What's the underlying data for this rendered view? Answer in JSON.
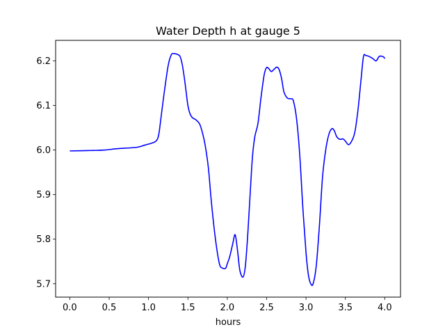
{
  "chart_data": {
    "type": "line",
    "title": "Water Depth h at gauge 5",
    "xlabel": "hours",
    "ylabel": "",
    "xlim": [
      -0.18,
      4.2
    ],
    "ylim": [
      5.67,
      6.246
    ],
    "grid": false,
    "line_color": "#0000ff",
    "x_ticks": [
      0.0,
      0.5,
      1.0,
      1.5,
      2.0,
      2.5,
      3.0,
      3.5,
      4.0
    ],
    "x_tick_labels": [
      "0.0",
      "0.5",
      "1.0",
      "1.5",
      "2.0",
      "2.5",
      "3.0",
      "3.5",
      "4.0"
    ],
    "y_ticks": [
      5.7,
      5.8,
      5.9,
      6.0,
      6.1,
      6.2
    ],
    "y_tick_labels": [
      "5.7",
      "5.8",
      "5.9",
      "6.0",
      "6.1",
      "6.2"
    ],
    "series": [
      {
        "x": [
          0.0,
          0.3,
          0.45,
          0.6,
          0.85,
          0.95,
          1.05,
          1.1,
          1.13,
          1.16,
          1.2,
          1.25,
          1.29,
          1.32,
          1.36,
          1.4,
          1.43,
          1.46,
          1.5,
          1.53,
          1.56,
          1.6,
          1.65,
          1.69,
          1.72,
          1.76,
          1.8,
          1.85,
          1.9,
          1.94,
          1.98,
          2.0,
          2.03,
          2.07,
          2.1,
          2.13,
          2.16,
          2.2,
          2.23,
          2.26,
          2.29,
          2.32,
          2.35,
          2.39,
          2.43,
          2.47,
          2.5,
          2.53,
          2.56,
          2.6,
          2.63,
          2.66,
          2.69,
          2.72,
          2.76,
          2.79,
          2.81,
          2.84,
          2.88,
          2.92,
          2.96,
          3.0,
          3.03,
          3.06,
          3.09,
          3.13,
          3.17,
          3.21,
          3.25,
          3.29,
          3.33,
          3.36,
          3.39,
          3.43,
          3.47,
          3.5,
          3.54,
          3.58,
          3.62,
          3.66,
          3.7,
          3.73,
          3.76,
          3.8,
          3.85,
          3.89,
          3.93,
          3.97,
          3.99,
          4.0
        ],
        "y": [
          5.998,
          5.999,
          6.0,
          6.003,
          6.006,
          6.011,
          6.016,
          6.021,
          6.035,
          6.075,
          6.13,
          6.19,
          6.214,
          6.216,
          6.215,
          6.21,
          6.19,
          6.155,
          6.1,
          6.08,
          6.072,
          6.068,
          6.058,
          6.035,
          6.01,
          5.96,
          5.88,
          5.8,
          5.745,
          5.735,
          5.735,
          5.745,
          5.76,
          5.79,
          5.81,
          5.775,
          5.73,
          5.715,
          5.74,
          5.81,
          5.9,
          5.985,
          6.03,
          6.06,
          6.12,
          6.17,
          6.185,
          6.182,
          6.176,
          6.182,
          6.186,
          6.18,
          6.16,
          6.13,
          6.117,
          6.115,
          6.115,
          6.11,
          6.07,
          5.99,
          5.87,
          5.77,
          5.72,
          5.7,
          5.7,
          5.74,
          5.83,
          5.94,
          6.0,
          6.035,
          6.048,
          6.043,
          6.03,
          6.024,
          6.025,
          6.02,
          6.012,
          6.02,
          6.04,
          6.09,
          6.16,
          6.21,
          6.212,
          6.21,
          6.205,
          6.2,
          6.21,
          6.21,
          6.208,
          6.205
        ]
      }
    ]
  }
}
